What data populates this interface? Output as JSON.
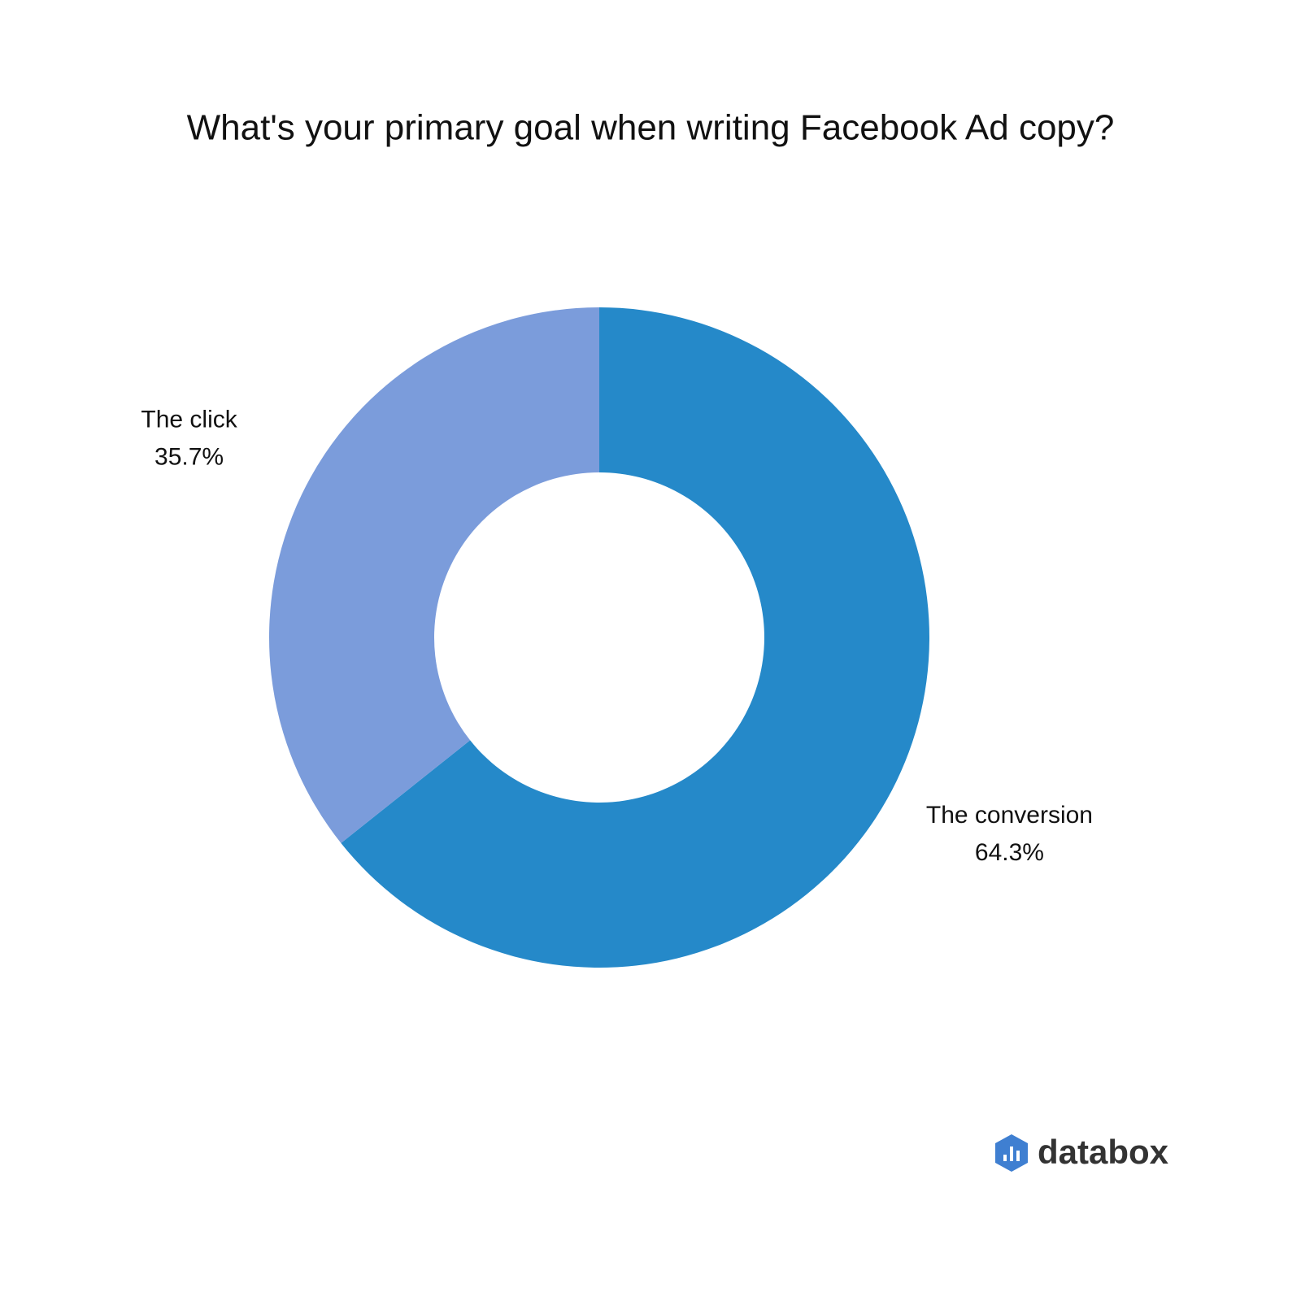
{
  "chart_data": {
    "type": "donut",
    "title": "What's your primary goal when writing Facebook Ad copy?",
    "categories": [
      "The conversion",
      "The click"
    ],
    "values": [
      64.3,
      35.7
    ],
    "value_labels": [
      "64.3%",
      "35.7%"
    ],
    "colors": [
      "#2589c9",
      "#7b9cdb"
    ]
  },
  "brand": "databox"
}
